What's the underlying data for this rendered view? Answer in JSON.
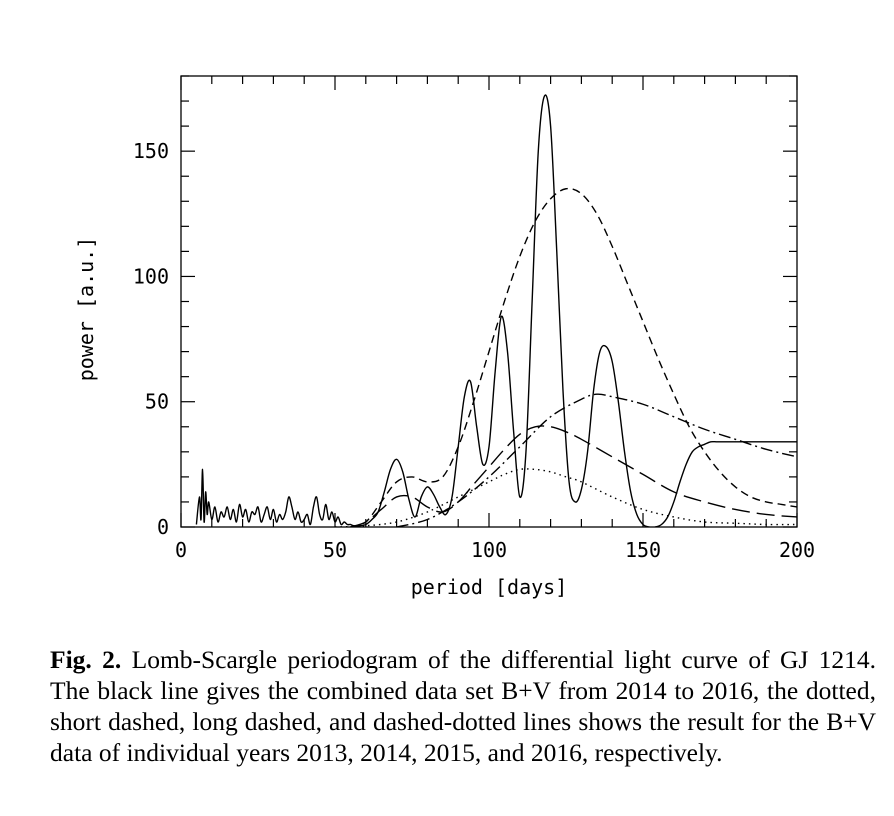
{
  "caption": {
    "label": "Fig. 2.",
    "text": "Lomb-Scargle periodogram of the differential light curve of GJ 1214. The black line gives the combined data set B+V from 2014 to 2016, the dotted, short dashed, long dashed, and dashed-dotted lines shows the result for the B+V data of individual years 2013, 2014, 2015, and 2016, respectively."
  },
  "chart_data": {
    "type": "line",
    "xlabel": "period [days]",
    "ylabel": "power [a.u.]",
    "xlim": [
      0,
      200
    ],
    "ylim": [
      0,
      180
    ],
    "xticks": [
      0,
      50,
      100,
      150,
      200
    ],
    "yticks": [
      0,
      50,
      100,
      150
    ],
    "xtick_labels": [
      "0",
      "50",
      "100",
      "150",
      "200"
    ],
    "ytick_labels": [
      "0",
      "50",
      "100",
      "150"
    ],
    "grid": false,
    "legend": "none",
    "series": [
      {
        "style": "solid",
        "x": [
          5,
          6,
          6.5,
          7,
          7.5,
          8,
          8.5,
          9,
          10,
          11,
          12,
          13,
          14,
          15,
          16,
          17,
          18,
          19,
          20,
          21,
          22,
          23,
          24,
          25,
          26,
          27,
          28,
          29,
          30,
          31,
          32,
          33,
          34,
          35,
          36,
          37,
          38,
          39,
          40,
          41,
          42,
          43,
          44,
          45,
          46,
          47,
          48,
          49,
          50,
          51,
          52,
          53,
          54,
          55,
          56,
          58,
          60,
          62,
          64,
          66,
          68,
          70,
          72,
          74,
          76,
          78,
          80,
          82,
          84,
          86,
          88,
          90,
          92,
          94,
          96,
          98,
          100,
          102,
          104,
          106,
          108,
          110,
          112,
          114,
          116,
          118,
          120,
          122,
          124,
          126,
          128,
          130,
          132,
          134,
          136,
          138,
          140,
          142,
          144,
          146,
          148,
          150,
          152,
          154,
          156,
          158,
          160,
          162,
          164,
          166,
          168,
          170,
          172,
          174,
          176,
          178,
          180,
          184,
          188,
          192,
          196,
          200
        ],
        "y": [
          1,
          12,
          3,
          23,
          2,
          14,
          5,
          10,
          3,
          8,
          2,
          6,
          4,
          8,
          3,
          7,
          2,
          9,
          4,
          7,
          2,
          6,
          5,
          8,
          2,
          5,
          8,
          3,
          7,
          2,
          5,
          3,
          6,
          12,
          8,
          3,
          6,
          2,
          3,
          5,
          1,
          8,
          12,
          5,
          3,
          9,
          3,
          6,
          2,
          4,
          1,
          2,
          1,
          1,
          0.5,
          0.5,
          1,
          3,
          6,
          14,
          23,
          27,
          22,
          11,
          4,
          12,
          16,
          13,
          8,
          5,
          12,
          32,
          52,
          58,
          40,
          25,
          32,
          62,
          84,
          70,
          38,
          12,
          30,
          90,
          150,
          172,
          160,
          110,
          55,
          18,
          10,
          15,
          30,
          55,
          70,
          72,
          66,
          50,
          30,
          14,
          5,
          1,
          0,
          0,
          1,
          4,
          10,
          18,
          25,
          30,
          32,
          33,
          34,
          34,
          34,
          34,
          34,
          34,
          34,
          34,
          34,
          34
        ]
      },
      {
        "style": "dotted",
        "x": [
          50,
          60,
          70,
          80,
          90,
          100,
          105,
          110,
          115,
          120,
          125,
          130,
          140,
          150,
          160,
          170,
          180,
          190,
          200
        ],
        "y": [
          0,
          0.5,
          2,
          6,
          12,
          18,
          21,
          23,
          23,
          22,
          20,
          18,
          12,
          7,
          4,
          2,
          1.5,
          1,
          1
        ]
      },
      {
        "style": "short-dashed",
        "x": [
          55,
          60,
          65,
          70,
          75,
          80,
          85,
          90,
          95,
          100,
          105,
          110,
          115,
          120,
          125,
          130,
          135,
          140,
          145,
          150,
          155,
          160,
          165,
          170,
          175,
          180,
          185,
          190,
          195,
          200
        ],
        "y": [
          0,
          2,
          10,
          18,
          20,
          18,
          20,
          32,
          50,
          70,
          90,
          108,
          122,
          131,
          135,
          133,
          125,
          112,
          97,
          82,
          67,
          53,
          40,
          30,
          22,
          16,
          12,
          10,
          9,
          8
        ]
      },
      {
        "style": "long-dashed",
        "x": [
          55,
          60,
          65,
          70,
          75,
          80,
          85,
          90,
          95,
          100,
          105,
          110,
          115,
          120,
          125,
          130,
          140,
          150,
          160,
          170,
          180,
          190,
          200
        ],
        "y": [
          0,
          2,
          7,
          12,
          12,
          8,
          6,
          10,
          17,
          24,
          31,
          37,
          40,
          40,
          38,
          35,
          28,
          21,
          14,
          10,
          7,
          5,
          4
        ]
      },
      {
        "style": "dash-dot",
        "x": [
          70,
          80,
          90,
          100,
          110,
          120,
          130,
          135,
          140,
          150,
          160,
          170,
          180,
          190,
          200
        ],
        "y": [
          0,
          3,
          10,
          20,
          32,
          44,
          51,
          53,
          52,
          49,
          44,
          39,
          35,
          31,
          28
        ]
      }
    ]
  }
}
